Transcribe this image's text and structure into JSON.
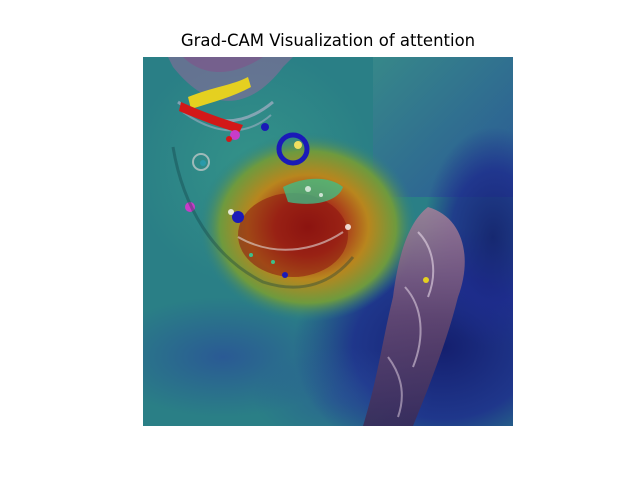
{
  "figure": {
    "title": "Grad-CAM Visualization of attention"
  },
  "image": {
    "subject": "Grad-CAM heatmap overlaid on a close-up photograph of an ape face and a hand",
    "colormap": "jet",
    "colors": {
      "background_teal": "#2a7f86",
      "cold_blue": "#1d2a8c",
      "deep_blue": "#141f6e",
      "hot_red": "#8c1410",
      "warm_orange": "#c0641c",
      "yellow": "#c9b21a",
      "green": "#4a9a4a"
    }
  }
}
